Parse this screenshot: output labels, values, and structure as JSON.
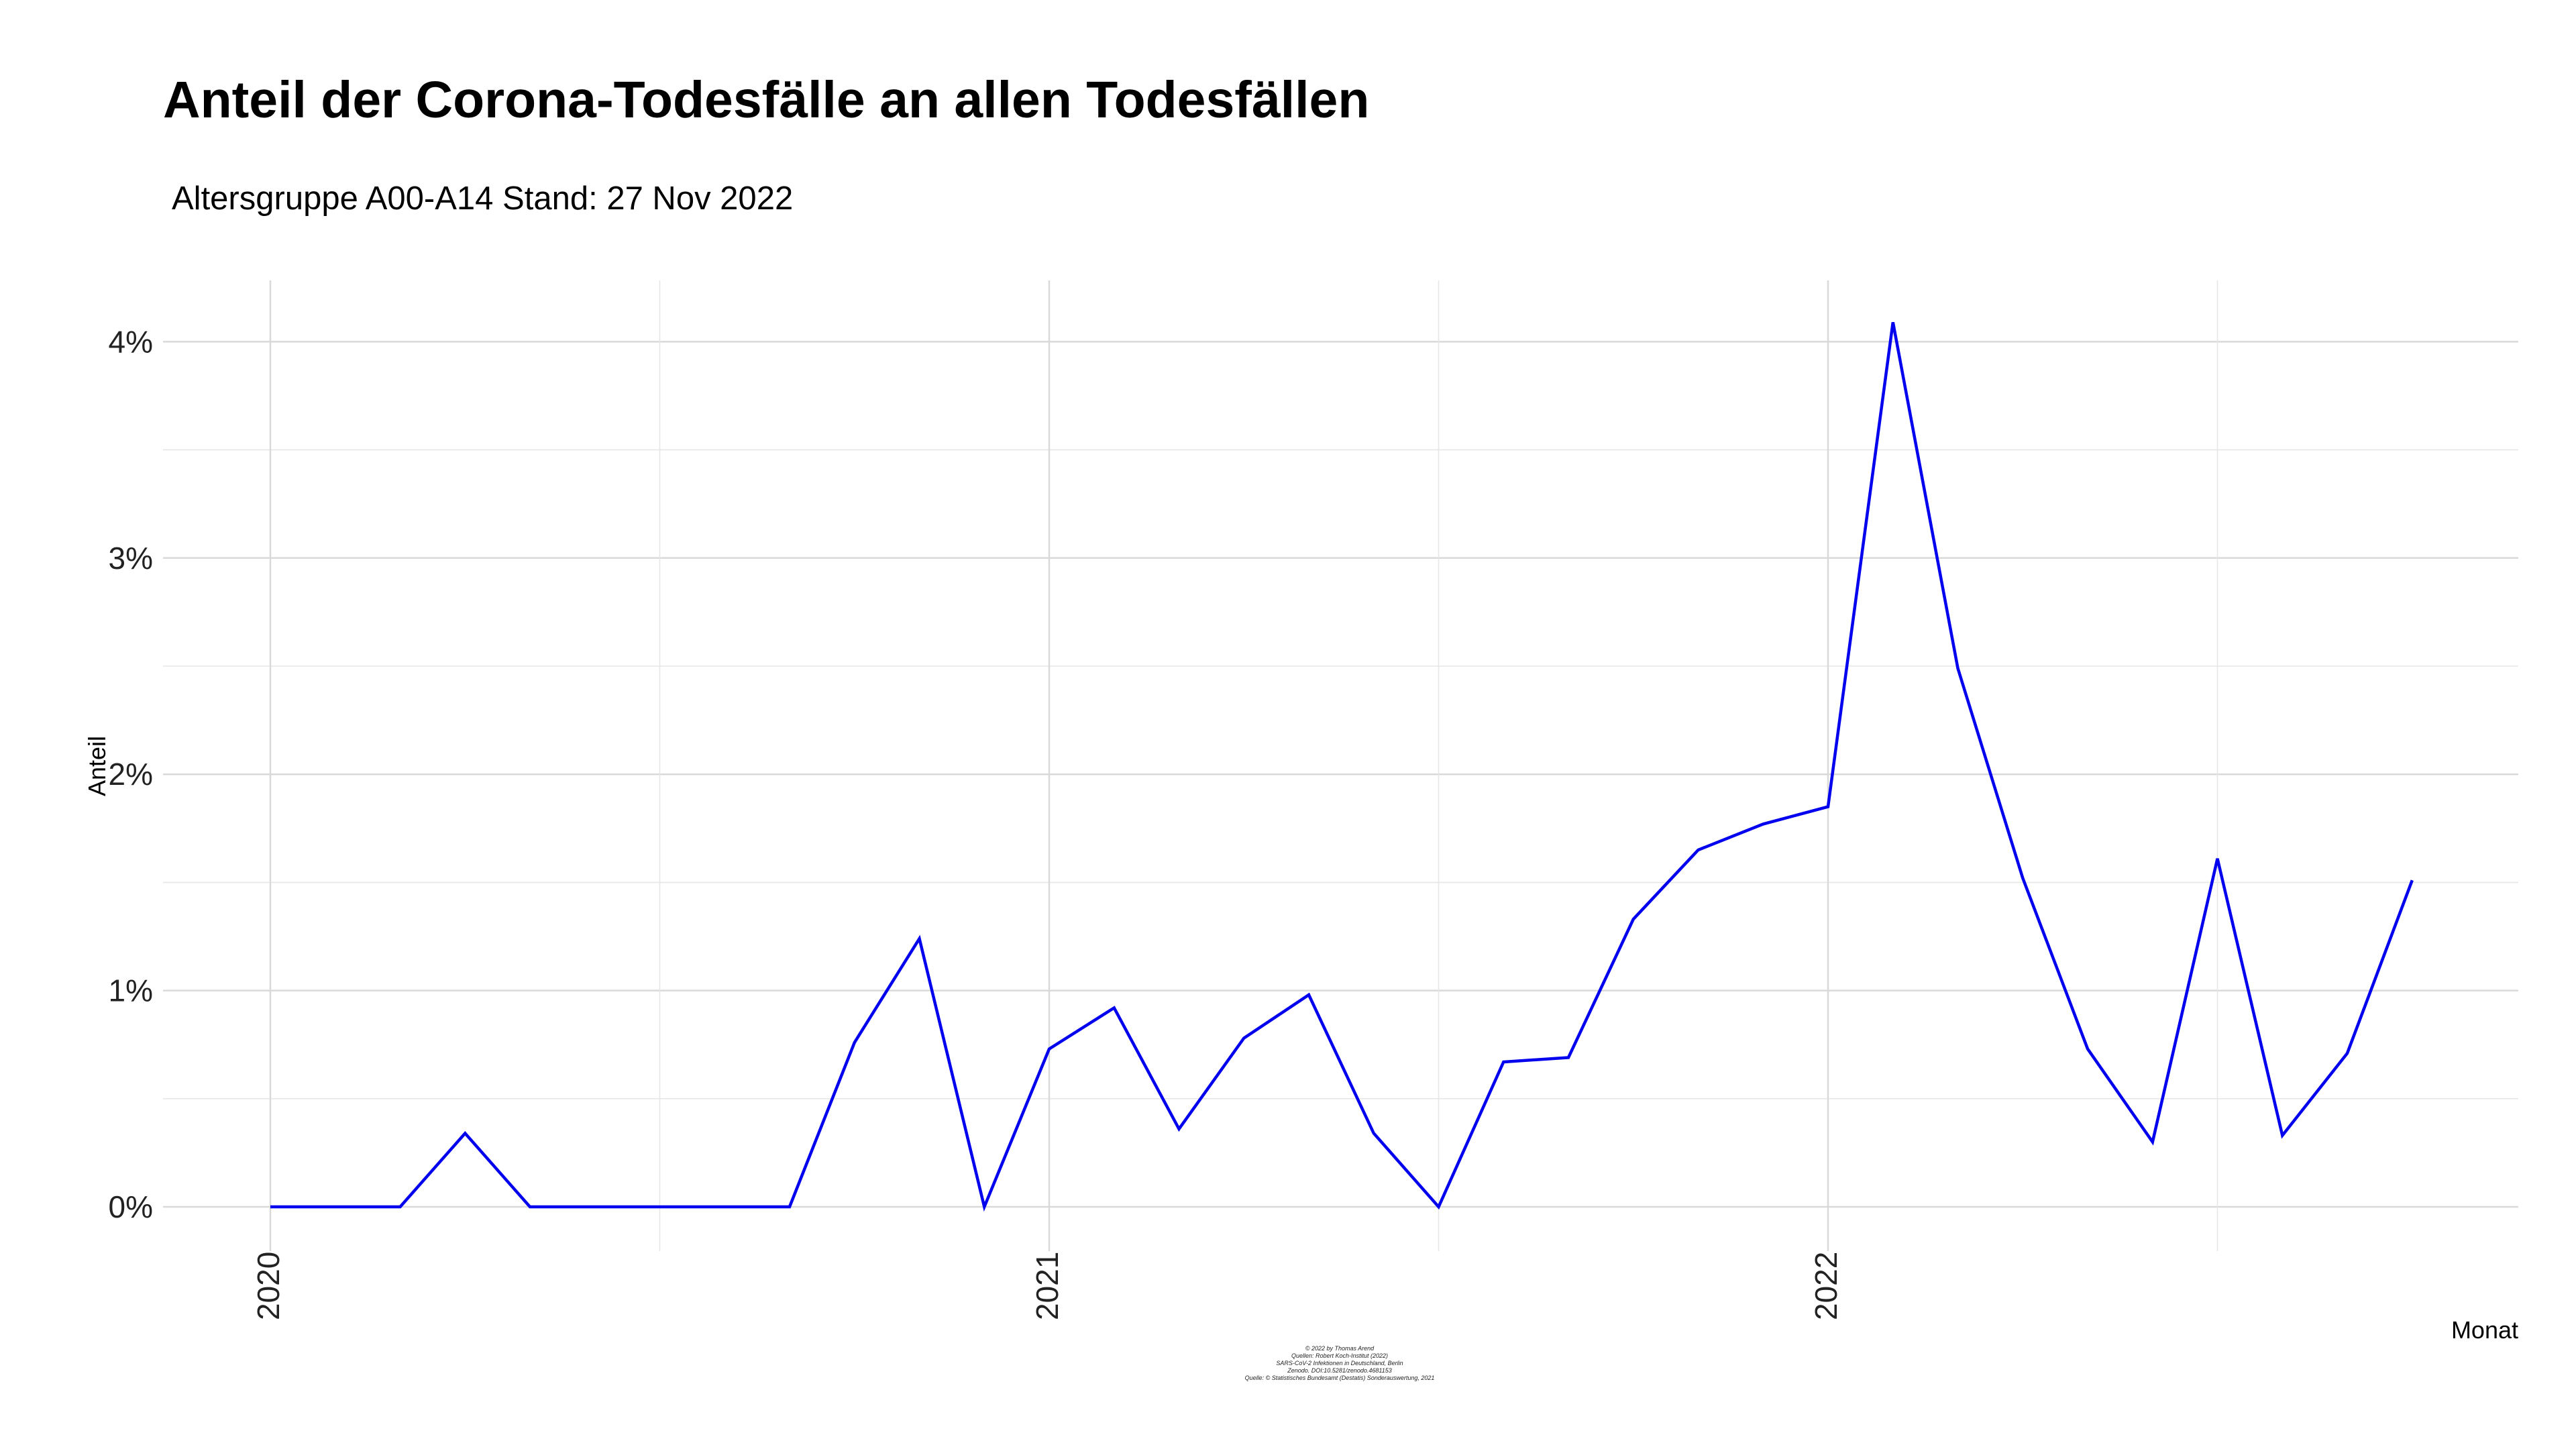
{
  "chart_data": {
    "type": "line",
    "title": "Anteil der Corona-Todesfälle an allen Todesfällen",
    "subtitle": "Altersgruppe A00-A14  Stand: 27 Nov 2022",
    "xlabel": "Monat",
    "ylabel": "Anteil",
    "x_ticks": [
      "2020",
      "2021",
      "2022"
    ],
    "y_ticks": [
      "0%",
      "1%",
      "2%",
      "3%",
      "4%"
    ],
    "ylim": [
      0,
      4.3
    ],
    "grid": true,
    "line_color": "#0000ee",
    "series": [
      {
        "x": [
          "2020-01",
          "2020-02",
          "2020-03",
          "2020-04",
          "2020-05",
          "2020-06",
          "2020-07",
          "2020-08",
          "2020-09",
          "2020-10",
          "2020-11",
          "2020-12",
          "2021-01",
          "2021-02",
          "2021-03",
          "2021-04",
          "2021-05",
          "2021-06",
          "2021-07",
          "2021-08",
          "2021-09",
          "2021-10",
          "2021-11",
          "2021-12",
          "2022-01",
          "2022-02",
          "2022-03",
          "2022-04",
          "2022-05",
          "2022-06",
          "2022-07",
          "2022-08",
          "2022-09",
          "2022-10"
        ],
        "values": [
          0.0,
          0.0,
          0.0,
          0.34,
          0.0,
          0.0,
          0.0,
          0.0,
          0.0,
          0.76,
          1.24,
          0.0,
          0.73,
          0.92,
          0.36,
          0.78,
          0.98,
          0.34,
          0.0,
          0.67,
          0.69,
          1.33,
          1.65,
          1.77,
          1.85,
          4.09,
          2.49,
          1.52,
          0.73,
          0.3,
          1.61,
          0.33,
          0.71,
          1.51
        ]
      }
    ],
    "caption_lines": [
      "© 2022 by Thomas Arend",
      "Quellen: Robert Koch-Institut (2022)",
      "SARS-CoV-2 Infektionen in Deutschland, Berlin",
      "Zenodo. DOI:10.5281/zenodo.4681153",
      "Quelle: © Statistisches Bundesamt (Destatis) Sonderauswertung, 2021"
    ]
  }
}
